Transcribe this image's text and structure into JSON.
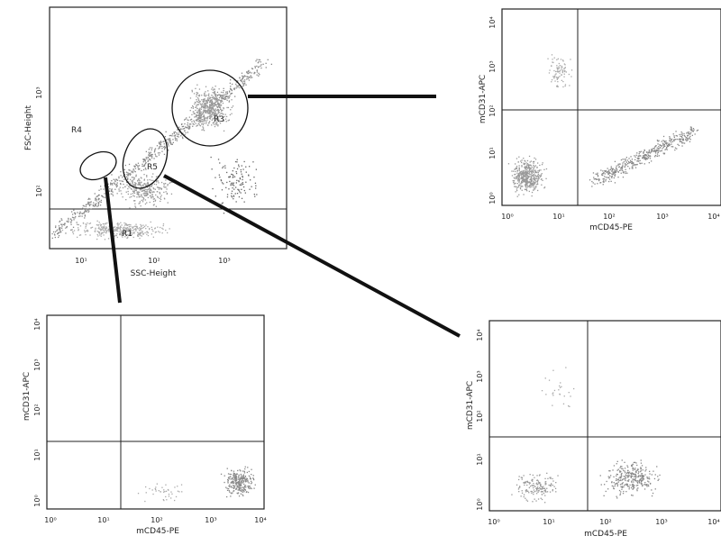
{
  "chart_data": [
    {
      "type": "scatter",
      "xlabel": "SSC-Height",
      "ylabel": "FSC-Height",
      "xticks": [
        "10¹",
        "10²",
        "10³"
      ],
      "yticks": [
        "10²",
        "10³"
      ],
      "gates": [
        "R4",
        "R5",
        "R3",
        "R1"
      ],
      "grid": false
    },
    {
      "type": "scatter",
      "xlabel": "mCD45-PE",
      "ylabel": "mCD31-APC",
      "xticks": [
        "10⁰",
        "10¹",
        "10²",
        "10³",
        "10⁴"
      ],
      "yticks": [
        "10⁰",
        "10¹",
        "10²",
        "10³",
        "10⁴"
      ],
      "grid": false
    },
    {
      "type": "scatter",
      "xlabel": "mCD45-PE",
      "ylabel": "mCD31-APC",
      "xticks": [
        "10⁰",
        "10¹",
        "10²",
        "10³",
        "10⁴"
      ],
      "yticks": [
        "10⁰",
        "10¹",
        "10²",
        "10³",
        "10⁴"
      ],
      "grid": false
    },
    {
      "type": "scatter",
      "xlabel": "mCD45-PE",
      "ylabel": "mCD31-APC",
      "xticks": [
        "10⁰",
        "10¹",
        "10²",
        "10³",
        "10⁴"
      ],
      "yticks": [
        "10⁰",
        "10¹",
        "10²",
        "10³",
        "10⁴"
      ],
      "grid": false
    }
  ]
}
